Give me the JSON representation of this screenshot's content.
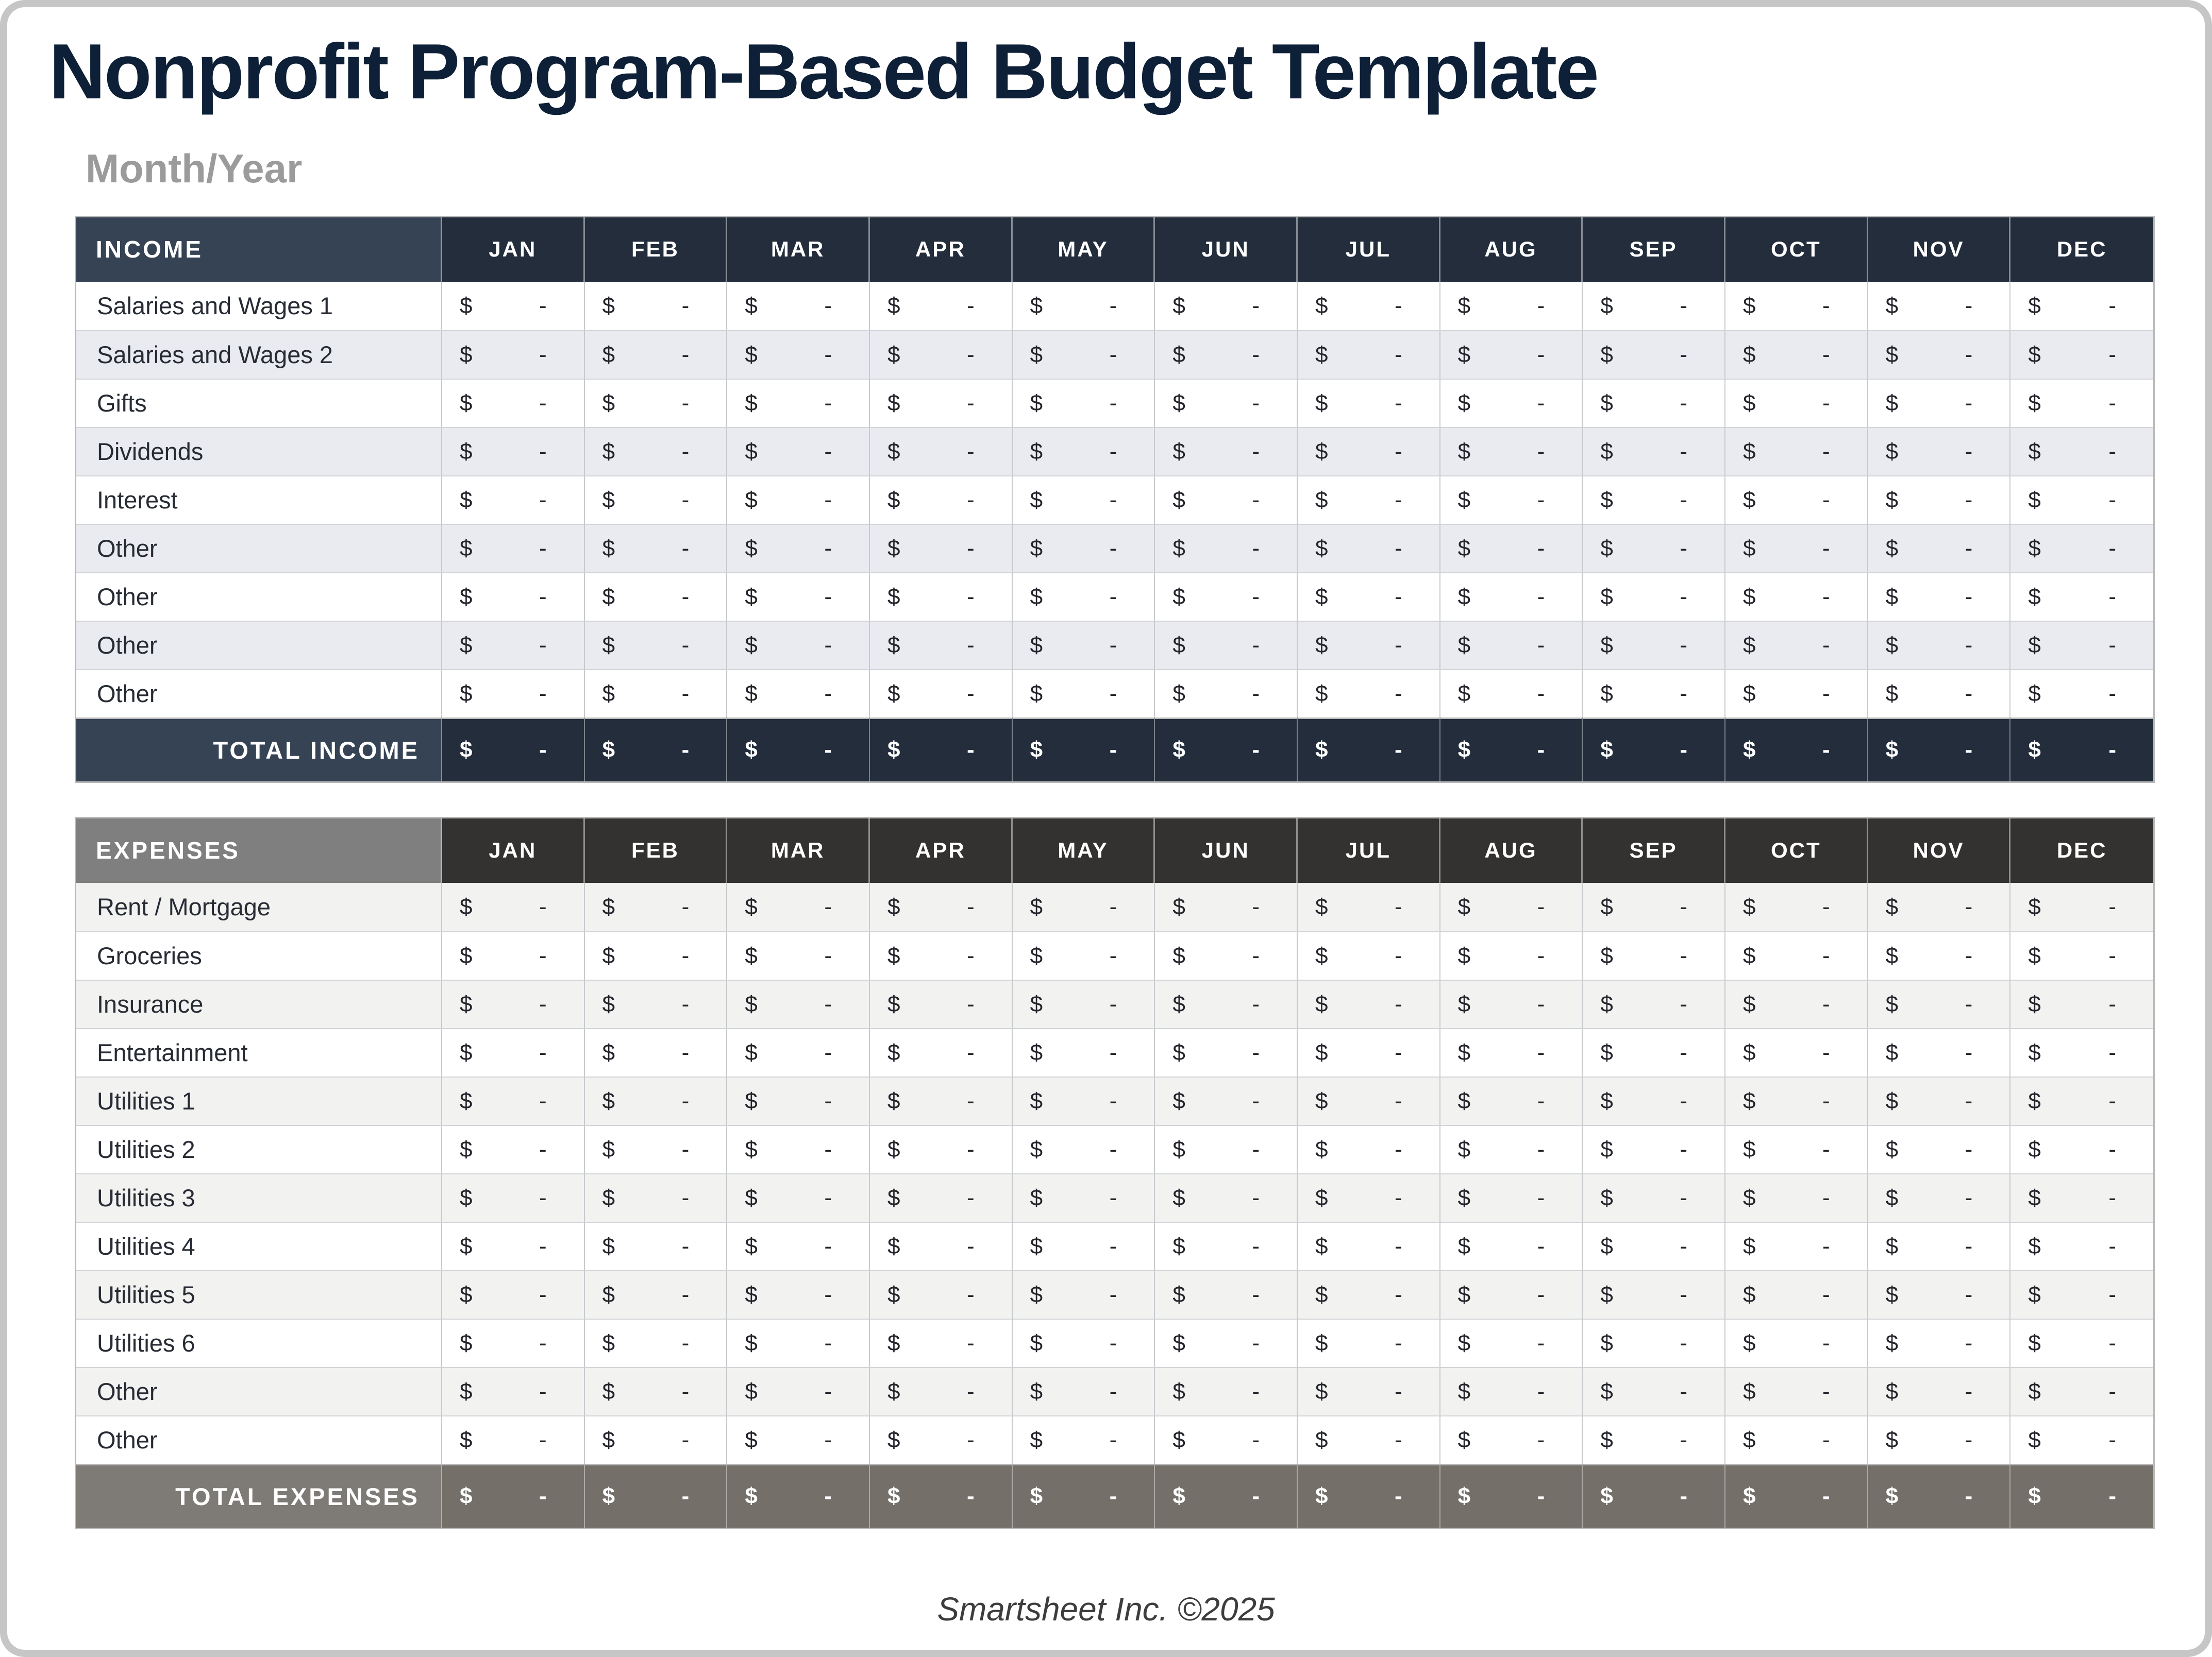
{
  "page": {
    "title": "Nonprofit Program-Based Budget Template",
    "subtitle": "Month/Year",
    "footer_credit": "Smartsheet Inc. ©2025"
  },
  "months": [
    "JAN",
    "FEB",
    "MAR",
    "APR",
    "MAY",
    "JUN",
    "JUL",
    "AUG",
    "SEP",
    "OCT",
    "NOV",
    "DEC"
  ],
  "placeholder_cell": {
    "currency_symbol": "$",
    "value": "-"
  },
  "income_table": {
    "header_label": "INCOME",
    "rows": [
      "Salaries and Wages 1",
      "Salaries and Wages 2",
      "Gifts",
      "Dividends",
      "Interest",
      "Other",
      "Other",
      "Other",
      "Other"
    ],
    "total_label": "TOTAL INCOME"
  },
  "expenses_table": {
    "header_label": "EXPENSES",
    "rows": [
      "Rent / Mortgage",
      "Groceries",
      "Insurance",
      "Entertainment",
      "Utilities 1",
      "Utilities 2",
      "Utilities 3",
      "Utilities 4",
      "Utilities 5",
      "Utilities 6",
      "Other",
      "Other"
    ],
    "total_label": "TOTAL EXPENSES"
  },
  "colors": {
    "page_border": "#c6c6c6",
    "title_navy": "#0e2038",
    "subtitle_gray": "#9b9b9b",
    "footer_gray": "#3d3d3d",
    "income_header_label_bg": "#364355",
    "income_header_month_bg": "#232d3c",
    "income_stripe": "#e9ebf1",
    "income_total_label_bg": "#364355",
    "income_total_month_bg": "#232d3c",
    "expenses_header_label_bg": "#7f7f7f",
    "expenses_header_month_bg": "#343231",
    "expenses_stripe": "#f2f2f1",
    "expenses_total_label_bg": "#7e7a76",
    "expenses_total_month_bg": "#747069"
  }
}
